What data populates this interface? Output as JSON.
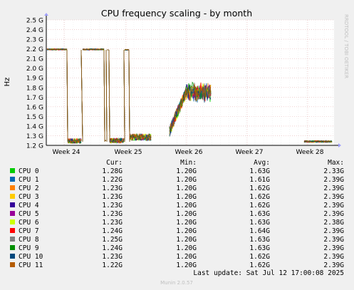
{
  "chart_data": {
    "type": "line",
    "title": "CPU frequency scaling - by month",
    "ylabel": "Hz",
    "side_label": "RRDTOOL / TOBI OETIKER",
    "footer": "Munin 2.0.57",
    "ylim": [
      1.2,
      2.5
    ],
    "yticks": [
      "2.5 G",
      "2.4 G",
      "2.3 G",
      "2.2 G",
      "2.1 G",
      "2.0 G",
      "1.9 G",
      "1.8 G",
      "1.7 G",
      "1.6 G",
      "1.5 G",
      "1.4 G",
      "1.3 G",
      "1.2 G"
    ],
    "xticks": [
      "Week 24",
      "Week 25",
      "Week 26",
      "Week 27",
      "Week 28"
    ],
    "grid": true,
    "legend_headers": {
      "cur": "Cur:",
      "min": "Min:",
      "avg": "Avg:",
      "max": "Max:"
    },
    "series": [
      {
        "name": "CPU 0",
        "color": "#00cc00",
        "cur": "1.28G",
        "min": "1.20G",
        "avg": "1.63G",
        "max": "2.33G"
      },
      {
        "name": "CPU 1",
        "color": "#0066b3",
        "cur": "1.22G",
        "min": "1.20G",
        "avg": "1.61G",
        "max": "2.39G"
      },
      {
        "name": "CPU 2",
        "color": "#ff8000",
        "cur": "1.23G",
        "min": "1.20G",
        "avg": "1.62G",
        "max": "2.39G"
      },
      {
        "name": "CPU 3",
        "color": "#ffcc00",
        "cur": "1.23G",
        "min": "1.20G",
        "avg": "1.62G",
        "max": "2.39G"
      },
      {
        "name": "CPU 4",
        "color": "#330099",
        "cur": "1.23G",
        "min": "1.20G",
        "avg": "1.62G",
        "max": "2.39G"
      },
      {
        "name": "CPU 5",
        "color": "#990099",
        "cur": "1.23G",
        "min": "1.20G",
        "avg": "1.63G",
        "max": "2.39G"
      },
      {
        "name": "CPU 6",
        "color": "#ccff00",
        "cur": "1.23G",
        "min": "1.20G",
        "avg": "1.63G",
        "max": "2.38G"
      },
      {
        "name": "CPU 7",
        "color": "#ff0000",
        "cur": "1.24G",
        "min": "1.20G",
        "avg": "1.64G",
        "max": "2.39G"
      },
      {
        "name": "CPU 8",
        "color": "#808080",
        "cur": "1.25G",
        "min": "1.20G",
        "avg": "1.63G",
        "max": "2.39G"
      },
      {
        "name": "CPU 9",
        "color": "#008f00",
        "cur": "1.24G",
        "min": "1.20G",
        "avg": "1.63G",
        "max": "2.39G"
      },
      {
        "name": "CPU 10",
        "color": "#00487d",
        "cur": "1.23G",
        "min": "1.20G",
        "avg": "1.62G",
        "max": "2.39G"
      },
      {
        "name": "CPU 11",
        "color": "#b35a00",
        "cur": "1.22G",
        "min": "1.20G",
        "avg": "1.62G",
        "max": "2.39G"
      }
    ],
    "last_update": "Last update: Sat Jul 12 17:00:08 2025"
  }
}
